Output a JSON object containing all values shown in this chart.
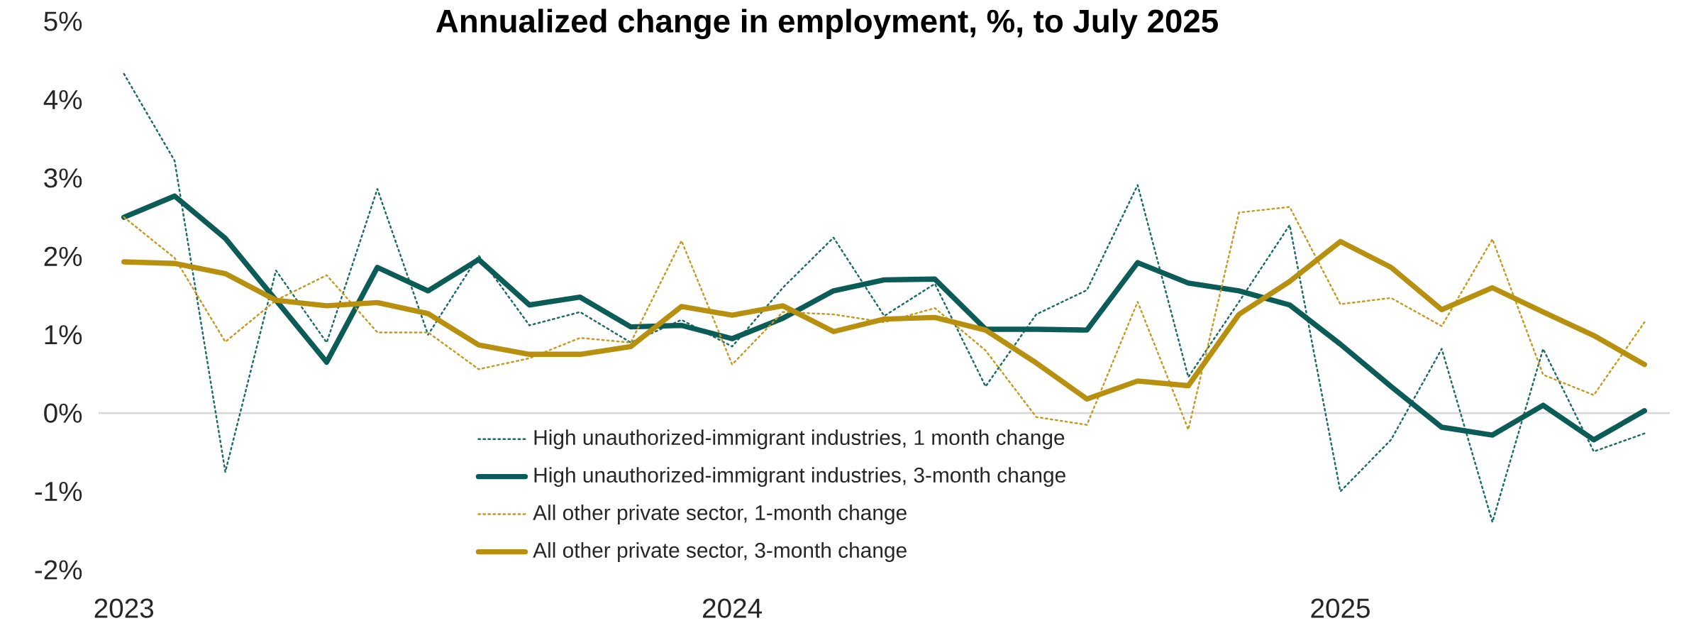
{
  "chart_data": {
    "type": "line",
    "title": "Annualized change in employment, %, to July 2025",
    "x": [
      "2023-01",
      "2023-02",
      "2023-03",
      "2023-04",
      "2023-05",
      "2023-06",
      "2023-07",
      "2023-08",
      "2023-09",
      "2023-10",
      "2023-11",
      "2023-12",
      "2024-01",
      "2024-02",
      "2024-03",
      "2024-04",
      "2024-05",
      "2024-06",
      "2024-07",
      "2024-08",
      "2024-09",
      "2024-10",
      "2024-11",
      "2024-12",
      "2025-01",
      "2025-02",
      "2025-03",
      "2025-04",
      "2025-05",
      "2025-06",
      "2025-07"
    ],
    "series": [
      {
        "name": "High unauthorized-immigrant industries, 1 month change",
        "color": "#1d6b66",
        "line_style": "dotted",
        "values": [
          4.33,
          3.22,
          -0.75,
          1.82,
          0.9,
          2.86,
          1.0,
          2.01,
          1.12,
          1.29,
          0.9,
          1.19,
          0.85,
          1.6,
          2.24,
          1.24,
          1.65,
          0.34,
          1.26,
          1.57,
          2.91,
          0.46,
          1.42,
          2.4,
          -1.0,
          -0.34,
          0.82,
          -1.39,
          0.82,
          -0.49,
          -0.26
        ]
      },
      {
        "name": "High unauthorized-immigrant industries, 3-month change",
        "color": "#0b5c57",
        "line_style": "solid",
        "values": [
          2.5,
          2.77,
          2.23,
          1.44,
          0.65,
          1.86,
          1.56,
          1.96,
          1.38,
          1.48,
          1.1,
          1.12,
          0.95,
          1.21,
          1.56,
          1.7,
          1.71,
          1.07,
          1.07,
          1.06,
          1.92,
          1.66,
          1.56,
          1.38,
          0.88,
          0.34,
          -0.18,
          -0.28,
          0.1,
          -0.34,
          0.03
        ]
      },
      {
        "name": "All other private sector, 1-month change",
        "color": "#c49a22",
        "line_style": "dotted",
        "values": [
          2.5,
          1.98,
          0.91,
          1.44,
          1.76,
          1.03,
          1.03,
          0.56,
          0.7,
          0.96,
          0.9,
          2.2,
          0.62,
          1.29,
          1.26,
          1.16,
          1.34,
          0.8,
          -0.05,
          -0.15,
          1.42,
          -0.21,
          2.56,
          2.63,
          1.39,
          1.47,
          1.11,
          2.22,
          0.49,
          0.23,
          1.16
        ]
      },
      {
        "name": "All other private sector, 3-month change",
        "color": "#b8900f",
        "line_style": "solid",
        "values": [
          1.93,
          1.91,
          1.78,
          1.44,
          1.37,
          1.41,
          1.27,
          0.87,
          0.75,
          0.75,
          0.85,
          1.36,
          1.25,
          1.37,
          1.04,
          1.2,
          1.22,
          1.06,
          0.64,
          0.18,
          0.41,
          0.35,
          1.26,
          1.68,
          2.19,
          1.86,
          1.32,
          1.6,
          1.29,
          0.99,
          0.62
        ]
      }
    ],
    "xlim": [
      "2022-12-16",
      "2025-07-16"
    ],
    "xticks": [
      {
        "value": "2023-01",
        "label": "2023"
      },
      {
        "value": "2024-01",
        "label": "2024"
      },
      {
        "value": "2025-01",
        "label": "2025"
      }
    ],
    "ylim": [
      -2,
      5
    ],
    "yticks": [
      {
        "value": -2,
        "label": "-2%"
      },
      {
        "value": -1,
        "label": "-1%"
      },
      {
        "value": 0,
        "label": "0%"
      },
      {
        "value": 1,
        "label": "1%"
      },
      {
        "value": 2,
        "label": "2%"
      },
      {
        "value": 3,
        "label": "3%"
      },
      {
        "value": 4,
        "label": "4%"
      },
      {
        "value": 5,
        "label": "5%"
      }
    ],
    "ref_lines": [
      {
        "axis": "y",
        "value": 0,
        "color": "#d9d9d9"
      }
    ],
    "grid": false,
    "legend": "bottom",
    "marker": "none"
  }
}
